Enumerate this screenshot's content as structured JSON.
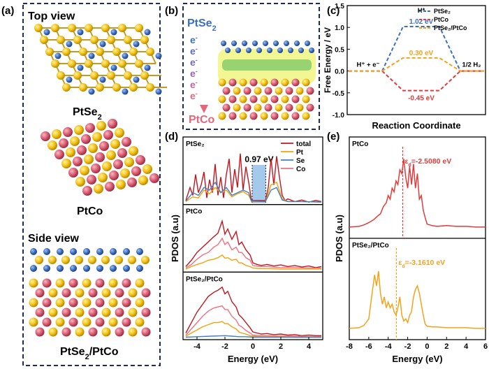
{
  "panels": {
    "a": {
      "label": "(a)",
      "top_view": "Top view",
      "side_view": "Side view",
      "s1": {
        "pre": "PtSe",
        "sub": "2",
        "post": ""
      },
      "s2": "PtCo",
      "s3": {
        "pre": "PtSe",
        "sub": "2",
        "post": "/PtCo"
      }
    },
    "b": {
      "label": "(b)",
      "title": {
        "pre": "PtSe",
        "sub": "2"
      },
      "electrons": [
        "e",
        "e",
        "e",
        "e",
        "e",
        "e"
      ],
      "electron_sup": "-",
      "bottom": "PtCo"
    },
    "c": {
      "label": "(c)"
    },
    "d": {
      "label": "(d)"
    },
    "e": {
      "label": "(e)"
    }
  },
  "chart_data": [
    {
      "id": "c",
      "type": "line",
      "xlabel": "Reaction Coordinate",
      "ylabel": "Free Energy / eV",
      "ylim": [
        -1.0,
        1.5
      ],
      "yticks": [
        "-1.0",
        "-0.5",
        "0.0",
        "0.5",
        "1.0",
        "1.5"
      ],
      "states": [
        {
          "label": "H⁺ + e⁻"
        },
        {
          "label": "H*"
        },
        {
          "label": "1/2 H₂"
        }
      ],
      "series": [
        {
          "name": "PtSe₂",
          "color": "#3b6fc4",
          "values": [
            0,
            1.02,
            0
          ],
          "label": "1.02 eV"
        },
        {
          "name": "PtCo",
          "color": "#e23b3b",
          "values": [
            0,
            -0.45,
            0
          ],
          "label": "-0.45 eV"
        },
        {
          "name": "PtSe₂/PtCo",
          "color": "#f4a21c",
          "values": [
            0,
            0.3,
            0
          ],
          "label": "0.30 eV"
        }
      ]
    },
    {
      "id": "d",
      "type": "line",
      "xlabel": "Energy (eV)",
      "ylabel": "PDOS (a.u)",
      "xlim": [
        -5,
        5
      ],
      "xticks": [
        "-4",
        "-2",
        "0",
        "2",
        "4"
      ],
      "legend": [
        {
          "name": "total",
          "color": "#c0171f"
        },
        {
          "name": "Pt",
          "color": "#f2a20c"
        },
        {
          "name": "Se",
          "color": "#3f7fc8"
        },
        {
          "name": "Co",
          "color": "#f07080"
        }
      ],
      "gap_label": "0.97 eV",
      "gap_range": [
        -0.05,
        0.92
      ],
      "subpanels": [
        {
          "name": "PtSe₂",
          "series": [
            {
              "name": "total",
              "x": [
                -4.8,
                -4.5,
                -4.3,
                -4.1,
                -3.9,
                -3.7,
                -3.5,
                -3.3,
                -3.1,
                -2.9,
                -2.7,
                -2.5,
                -2.3,
                -2.1,
                -1.9,
                -1.7,
                -1.5,
                -1.3,
                -1.1,
                -0.9,
                -0.7,
                -0.5,
                -0.3,
                -0.1,
                0.9,
                1.1,
                1.3,
                1.5,
                1.7,
                1.9,
                2.1,
                2.3,
                2.5,
                3.0,
                3.5,
                4.0,
                4.5,
                4.9
              ],
              "y": [
                0.05,
                0.3,
                0.15,
                0.55,
                0.2,
                0.35,
                0.6,
                0.1,
                0.45,
                0.2,
                0.75,
                0.15,
                0.5,
                0.1,
                0.55,
                0.85,
                0.2,
                0.65,
                0.3,
                0.95,
                0.25,
                0.7,
                0.4,
                0.05,
                0.05,
                0.3,
                0.85,
                0.35,
                0.9,
                0.5,
                0.15,
                0.05,
                0.08,
                0.03,
                0.06,
                0.02,
                0.05,
                0.03
              ]
            },
            {
              "name": "Pt",
              "x": [
                -4.8,
                -4.3,
                -3.9,
                -3.5,
                -3.1,
                -2.7,
                -2.3,
                -1.9,
                -1.5,
                -1.1,
                -0.7,
                -0.3,
                -0.1,
                0.9,
                1.3,
                1.7,
                2.1,
                2.5,
                3.5,
                4.9
              ],
              "y": [
                0.03,
                0.12,
                0.1,
                0.25,
                0.18,
                0.3,
                0.2,
                0.25,
                0.12,
                0.18,
                0.22,
                0.15,
                0.03,
                0.03,
                0.35,
                0.4,
                0.08,
                0.03,
                0.03,
                0.02
              ]
            },
            {
              "name": "Se",
              "x": [
                -4.8,
                -4.3,
                -3.9,
                -3.5,
                -3.1,
                -2.7,
                -2.3,
                -1.9,
                -1.5,
                -1.1,
                -0.7,
                -0.3,
                -0.1,
                0.9,
                1.3,
                1.7,
                2.1,
                2.5,
                3.5,
                4.9
              ],
              "y": [
                0.04,
                0.2,
                0.15,
                0.3,
                0.25,
                0.4,
                0.2,
                0.3,
                0.15,
                0.2,
                0.25,
                0.2,
                0.04,
                0.03,
                0.25,
                0.3,
                0.06,
                0.03,
                0.03,
                0.02
              ]
            }
          ]
        },
        {
          "name": "PtCo",
          "series": [
            {
              "name": "total",
              "x": [
                -4.8,
                -4.4,
                -4.0,
                -3.6,
                -3.2,
                -2.8,
                -2.5,
                -2.2,
                -2.0,
                -1.8,
                -1.5,
                -1.2,
                -1.0,
                -0.8,
                -0.5,
                -0.2,
                0.0,
                0.3,
                0.6,
                1.0,
                1.5,
                2.0,
                2.5,
                3.0,
                3.5,
                4.0,
                4.5,
                4.9
              ],
              "y": [
                0.08,
                0.2,
                0.35,
                0.45,
                0.55,
                0.65,
                0.72,
                0.95,
                0.7,
                0.8,
                0.6,
                0.75,
                0.5,
                0.55,
                0.4,
                0.3,
                0.15,
                0.12,
                0.1,
                0.12,
                0.09,
                0.11,
                0.08,
                0.1,
                0.07,
                0.09,
                0.06,
                0.08
              ]
            },
            {
              "name": "Co",
              "x": [
                -4.8,
                -4.4,
                -4.0,
                -3.6,
                -3.2,
                -2.8,
                -2.5,
                -2.2,
                -2.0,
                -1.8,
                -1.5,
                -1.2,
                -1.0,
                -0.8,
                -0.5,
                -0.2,
                0.0,
                0.5,
                1.0,
                2.0,
                3.0,
                4.0,
                4.9
              ],
              "y": [
                0.05,
                0.12,
                0.22,
                0.3,
                0.35,
                0.45,
                0.5,
                0.62,
                0.5,
                0.55,
                0.4,
                0.45,
                0.35,
                0.35,
                0.25,
                0.2,
                0.1,
                0.08,
                0.08,
                0.06,
                0.06,
                0.05,
                0.05
              ]
            },
            {
              "name": "Pt",
              "x": [
                -4.8,
                -4.4,
                -4.0,
                -3.6,
                -3.2,
                -2.8,
                -2.5,
                -2.2,
                -2.0,
                -1.8,
                -1.5,
                -1.2,
                -1.0,
                -0.8,
                -0.5,
                -0.2,
                0.0,
                0.5,
                1.0,
                2.0,
                3.0,
                4.0,
                4.9
              ],
              "y": [
                0.03,
                0.08,
                0.12,
                0.15,
                0.2,
                0.22,
                0.25,
                0.3,
                0.24,
                0.25,
                0.2,
                0.22,
                0.15,
                0.15,
                0.1,
                0.08,
                0.05,
                0.04,
                0.04,
                0.03,
                0.03,
                0.03,
                0.03
              ]
            }
          ]
        },
        {
          "name": "PtSe₂/PtCo",
          "series": [
            {
              "name": "total",
              "x": [
                -4.8,
                -4.4,
                -4.0,
                -3.6,
                -3.2,
                -2.8,
                -2.5,
                -2.2,
                -2.0,
                -1.8,
                -1.5,
                -1.2,
                -1.0,
                -0.8,
                -0.5,
                -0.2,
                0.0,
                0.3,
                0.6,
                1.0,
                1.5,
                2.0,
                2.5,
                3.0,
                3.5,
                4.0,
                4.5,
                4.9
              ],
              "y": [
                0.1,
                0.3,
                0.5,
                0.65,
                0.8,
                0.88,
                0.92,
                0.98,
                0.85,
                0.9,
                0.7,
                0.6,
                0.45,
                0.4,
                0.3,
                0.2,
                0.12,
                0.1,
                0.08,
                0.09,
                0.07,
                0.08,
                0.06,
                0.07,
                0.05,
                0.06,
                0.05,
                0.05
              ]
            },
            {
              "name": "Co",
              "x": [
                -4.8,
                -4.4,
                -4.0,
                -3.6,
                -3.2,
                -2.8,
                -2.5,
                -2.2,
                -2.0,
                -1.8,
                -1.5,
                -1.2,
                -1.0,
                -0.8,
                -0.5,
                -0.2,
                0.0,
                0.5,
                1.0,
                2.0,
                3.0,
                4.0,
                4.9
              ],
              "y": [
                0.06,
                0.18,
                0.3,
                0.42,
                0.52,
                0.58,
                0.6,
                0.62,
                0.55,
                0.55,
                0.42,
                0.35,
                0.25,
                0.22,
                0.15,
                0.1,
                0.06,
                0.05,
                0.05,
                0.04,
                0.04,
                0.03,
                0.03
              ]
            },
            {
              "name": "Pt",
              "x": [
                -4.8,
                -4.4,
                -4.0,
                -3.6,
                -3.2,
                -2.8,
                -2.5,
                -2.2,
                -2.0,
                -1.8,
                -1.5,
                -1.2,
                -1.0,
                -0.8,
                -0.5,
                -0.2,
                0.0,
                0.5,
                1.0,
                2.0,
                3.0,
                4.0,
                4.9
              ],
              "y": [
                0.04,
                0.1,
                0.16,
                0.22,
                0.26,
                0.3,
                0.3,
                0.32,
                0.28,
                0.28,
                0.22,
                0.18,
                0.12,
                0.1,
                0.08,
                0.05,
                0.04,
                0.03,
                0.03,
                0.03,
                0.02,
                0.02,
                0.02
              ]
            },
            {
              "name": "Se",
              "x": [
                -4.8,
                -4.0,
                -3.0,
                -2.0,
                -1.5,
                -1.0,
                -0.5,
                0.0,
                1.0,
                2.0,
                3.0,
                4.0,
                4.9
              ],
              "y": [
                0.02,
                0.03,
                0.04,
                0.05,
                0.04,
                0.03,
                0.03,
                0.02,
                0.02,
                0.02,
                0.02,
                0.02,
                0.02
              ]
            }
          ]
        }
      ]
    },
    {
      "id": "e",
      "type": "line",
      "xlabel": "Energy (eV)",
      "ylabel": "PDOS (a.u)",
      "xlim": [
        -8,
        6
      ],
      "xticks": [
        "-8",
        "-6",
        "-4",
        "-2",
        "0",
        "2",
        "4",
        "6"
      ],
      "subpanels": [
        {
          "name": "PtCo",
          "color": "#e23b3b",
          "d_band": -2.508,
          "d_label_pre": "ε",
          "d_label_sub": "d",
          "d_label_value": "=-2.5080 eV",
          "x": [
            -8,
            -7,
            -6.5,
            -6,
            -5.5,
            -5,
            -4.8,
            -4.5,
            -4.2,
            -4,
            -3.8,
            -3.6,
            -3.4,
            -3.2,
            -3.0,
            -2.8,
            -2.6,
            -2.4,
            -2.2,
            -2.0,
            -1.8,
            -1.6,
            -1.4,
            -1.2,
            -1.0,
            -0.8,
            -0.6,
            -0.4,
            -0.2,
            0,
            0.5,
            1,
            2,
            3,
            4,
            5,
            6
          ],
          "y": [
            0.02,
            0.03,
            0.05,
            0.08,
            0.12,
            0.18,
            0.2,
            0.3,
            0.35,
            0.45,
            0.4,
            0.55,
            0.5,
            0.65,
            0.6,
            0.8,
            0.75,
            0.95,
            0.7,
            0.55,
            0.85,
            0.6,
            0.88,
            0.55,
            0.75,
            0.4,
            0.45,
            0.25,
            0.15,
            0.06,
            0.04,
            0.03,
            0.04,
            0.03,
            0.03,
            0.02,
            0.02
          ]
        },
        {
          "name": "PtSe₂/PtCo",
          "color": "#f4a21c",
          "d_band": -3.161,
          "d_label_pre": "ε",
          "d_label_sub": "d",
          "d_label_value": "=-3.1610 eV",
          "x": [
            -8,
            -7,
            -6.5,
            -6,
            -5.8,
            -5.6,
            -5.4,
            -5.2,
            -5.0,
            -4.8,
            -4.6,
            -4.4,
            -4.2,
            -4.0,
            -3.8,
            -3.6,
            -3.4,
            -3.2,
            -3.0,
            -2.8,
            -2.6,
            -2.4,
            -2.2,
            -2.0,
            -1.8,
            -1.6,
            -1.4,
            -1.2,
            -1.0,
            -0.8,
            -0.6,
            -0.4,
            -0.2,
            0,
            0.5,
            1,
            2,
            3,
            4,
            5,
            6
          ],
          "y": [
            0.02,
            0.03,
            0.06,
            0.15,
            0.35,
            0.55,
            0.75,
            0.6,
            0.8,
            0.5,
            0.35,
            0.45,
            0.3,
            0.38,
            0.3,
            0.35,
            0.25,
            0.2,
            0.3,
            0.45,
            0.2,
            0.12,
            0.15,
            0.1,
            0.2,
            0.25,
            0.45,
            0.55,
            0.6,
            0.5,
            0.35,
            0.2,
            0.08,
            0.05,
            0.04,
            0.04,
            0.03,
            0.03,
            0.03,
            0.02,
            0.02
          ]
        }
      ]
    }
  ]
}
